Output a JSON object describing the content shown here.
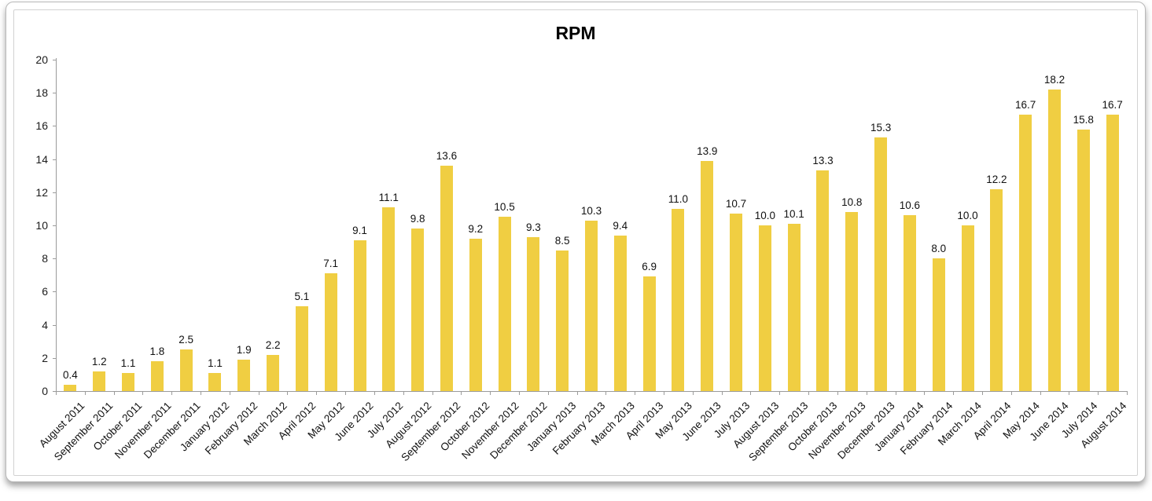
{
  "chart_data": {
    "type": "bar",
    "title": "RPM",
    "categories": [
      "August 2011",
      "September 2011",
      "October 2011",
      "November 2011",
      "December 2011",
      "January 2012",
      "February 2012",
      "March 2012",
      "April 2012",
      "May 2012",
      "June 2012",
      "July 2012",
      "August 2012",
      "September 2012",
      "October 2012",
      "November 2012",
      "December 2012",
      "January 2013",
      "February 2013",
      "March 2013",
      "April 2013",
      "May 2013",
      "June 2013",
      "July 2013",
      "August 2013",
      "September 2013",
      "October 2013",
      "November 2013",
      "December 2013",
      "January 2014",
      "February 2014",
      "March 2014",
      "April 2014",
      "May 2014",
      "June 2014",
      "July 2014",
      "August 2014"
    ],
    "values": [
      0.4,
      1.2,
      1.1,
      1.8,
      2.5,
      1.1,
      1.9,
      2.2,
      5.1,
      7.1,
      9.1,
      11.1,
      9.8,
      13.6,
      9.2,
      10.5,
      9.3,
      8.5,
      10.3,
      9.4,
      6.9,
      11.0,
      13.9,
      10.7,
      10.0,
      10.1,
      13.3,
      10.8,
      15.3,
      10.6,
      8.0,
      10.0,
      12.2,
      16.7,
      18.2,
      15.8,
      16.7
    ],
    "value_label_decimals": 1,
    "xlabel": "",
    "ylabel": "",
    "ylim": [
      0,
      20
    ],
    "yticks": [
      0,
      2,
      4,
      6,
      8,
      10,
      12,
      14,
      16,
      18,
      20
    ],
    "grid": false,
    "legend": "none",
    "bar_color": "#F0CE42",
    "axis_color": "#9B9B9B",
    "text_color": "#111111"
  }
}
